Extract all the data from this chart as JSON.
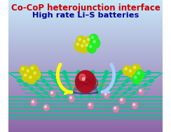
{
  "title_line1": "Co-CoP heterojunction interface",
  "title_line2": "High rate Li–S batteries",
  "title_color1": "#cc0000",
  "title_color2": "#000099",
  "bg_top_color": "#c8e8f8",
  "bg_bottom_color": "#b090c0",
  "grid_color": "#00cc88",
  "grid_node_color": "#00cc88",
  "sulfur_color": "#cccc00",
  "li_color": "#cc88aa",
  "central_ball_color": "#aa1122",
  "nanowire_color": "#3366aa",
  "arrow_color": "#ffff00",
  "arrow2_color": "#aaccff",
  "spark_color": "#ff8800",
  "figsize": [
    2.44,
    1.89
  ],
  "dpi": 100
}
